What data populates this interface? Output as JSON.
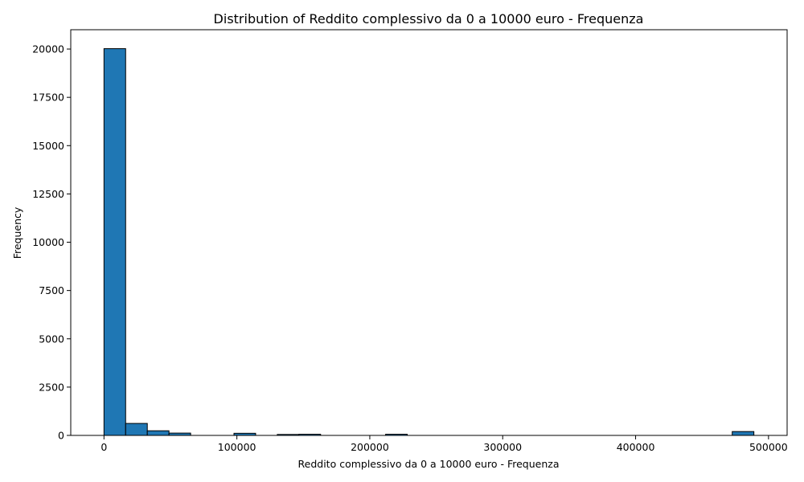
{
  "chart_data": {
    "type": "bar",
    "title": "Distribution of Reddito complessivo da 0 a 10000 euro - Frequenza",
    "xlabel": "Reddito complessivo da 0 a 10000 euro - Frequenza",
    "ylabel": "Frequency",
    "xlim": [
      -25000,
      514000
    ],
    "ylim": [
      0,
      21000
    ],
    "xticks": [
      0,
      100000,
      200000,
      300000,
      400000,
      500000
    ],
    "yticks": [
      0,
      2500,
      5000,
      7500,
      10000,
      12500,
      15000,
      17500,
      20000
    ],
    "bin_edges": [
      0,
      16300,
      32600,
      48900,
      65200,
      81500,
      97800,
      114100,
      130400,
      146700,
      163000,
      179300,
      195600,
      211900,
      228200,
      244500,
      260800,
      277100,
      293400,
      309700,
      326000,
      342300,
      358600,
      374900,
      391200,
      407500,
      423800,
      440100,
      456400,
      472700,
      489000
    ],
    "values": [
      20020,
      620,
      240,
      120,
      0,
      0,
      110,
      0,
      50,
      60,
      0,
      0,
      0,
      60,
      0,
      0,
      0,
      0,
      0,
      0,
      0,
      0,
      0,
      0,
      0,
      0,
      0,
      0,
      0,
      200
    ],
    "bar_color": "#1f77b4",
    "edge_color": "#000000",
    "grid": false,
    "legend": "none"
  }
}
